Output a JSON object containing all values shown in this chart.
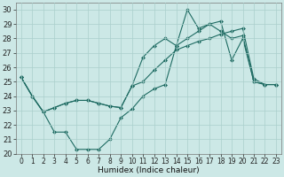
{
  "bg_color": "#cce8e6",
  "grid_color": "#aacfcc",
  "line_color": "#1e6b62",
  "xlabel": "Humidex (Indice chaleur)",
  "xlim": [
    -0.5,
    23.5
  ],
  "ylim": [
    20,
    30.5
  ],
  "xticks": [
    0,
    1,
    2,
    3,
    4,
    5,
    6,
    7,
    8,
    9,
    10,
    11,
    12,
    13,
    14,
    15,
    16,
    17,
    18,
    19,
    20,
    21,
    22,
    23
  ],
  "yticks": [
    20,
    21,
    22,
    23,
    24,
    25,
    26,
    27,
    28,
    29,
    30
  ],
  "s1": [
    25.3,
    24.0,
    22.9,
    21.5,
    21.5,
    20.3,
    20.3,
    20.3,
    21.0,
    22.5,
    23.1,
    24.0,
    24.5,
    24.8,
    27.5,
    30.0,
    28.7,
    29.0,
    29.2,
    26.5,
    28.0,
    25.0,
    24.8,
    24.8
  ],
  "s2": [
    25.3,
    24.0,
    22.9,
    23.2,
    23.5,
    23.7,
    23.7,
    23.5,
    23.3,
    23.2,
    24.7,
    25.0,
    25.8,
    26.5,
    27.2,
    27.5,
    27.8,
    28.0,
    28.3,
    28.5,
    28.7,
    25.2,
    24.8,
    24.8
  ],
  "s3": [
    25.3,
    24.0,
    22.9,
    23.2,
    23.5,
    23.7,
    23.7,
    23.5,
    23.3,
    23.2,
    24.7,
    26.7,
    27.5,
    28.0,
    27.5,
    28.0,
    28.5,
    29.0,
    28.5,
    28.0,
    28.2,
    25.0,
    24.8,
    24.8
  ],
  "xlabel_fontsize": 6.5,
  "tick_fontsize": 5.5,
  "ytick_fontsize": 6.0,
  "linewidth": 0.8,
  "markersize": 2.5
}
